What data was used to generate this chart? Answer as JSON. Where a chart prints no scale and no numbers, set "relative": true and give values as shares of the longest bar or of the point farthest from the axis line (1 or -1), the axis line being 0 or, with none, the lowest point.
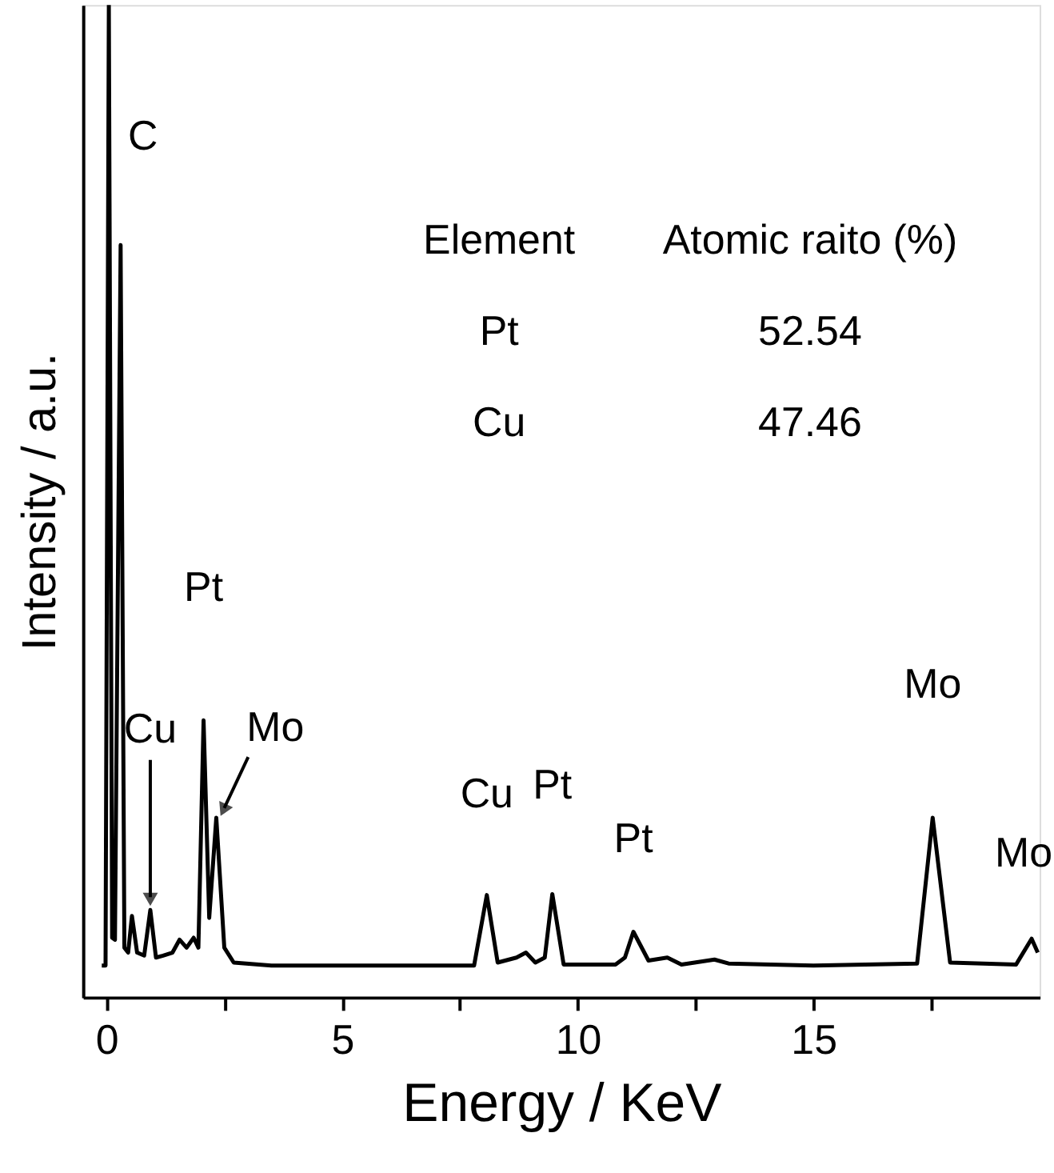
{
  "chart_data": {
    "type": "line",
    "relative": true,
    "xlabel": "Energy / KeV",
    "ylabel": "Intensity / a.u.",
    "xlim": [
      -0.5,
      19.8
    ],
    "xticks": [
      0,
      {
        "value": 2.5,
        "label": null
      },
      5,
      {
        "value": 7.5,
        "label": null
      },
      10,
      {
        "value": 12.5,
        "label": null
      },
      15,
      {
        "value": 17.5,
        "label": null
      }
    ],
    "grid": false,
    "marker": "none",
    "line_style": "solid",
    "series": [
      {
        "color": "#000000",
        "x": [
          -0.1,
          -0.02,
          0.05,
          0.12,
          0.18,
          0.3,
          0.38,
          0.46,
          0.54,
          0.65,
          0.8,
          0.93,
          1.05,
          1.2,
          1.4,
          1.55,
          1.7,
          1.85,
          1.95,
          2.06,
          2.18,
          2.33,
          2.5,
          2.7,
          3.5,
          5.0,
          6.5,
          7.8,
          8.07,
          8.3,
          8.7,
          8.9,
          9.1,
          9.3,
          9.46,
          9.7,
          10.8,
          11.0,
          11.18,
          11.5,
          11.9,
          12.2,
          12.9,
          13.2,
          15.0,
          17.2,
          17.53,
          17.9,
          19.3,
          19.63,
          19.76
        ],
        "values": [
          0.032,
          0.032,
          1.0,
          0.06,
          0.058,
          0.758,
          0.05,
          0.045,
          0.082,
          0.045,
          0.042,
          0.088,
          0.04,
          0.042,
          0.045,
          0.058,
          0.05,
          0.06,
          0.05,
          0.279,
          0.08,
          0.181,
          0.05,
          0.035,
          0.032,
          0.032,
          0.032,
          0.032,
          0.103,
          0.035,
          0.04,
          0.045,
          0.035,
          0.04,
          0.104,
          0.033,
          0.033,
          0.04,
          0.066,
          0.037,
          0.04,
          0.033,
          0.038,
          0.034,
          0.032,
          0.034,
          0.181,
          0.035,
          0.033,
          0.059,
          0.045
        ]
      }
    ],
    "annotations": [
      {
        "text": "C",
        "x": 0.3,
        "y": 0.758
      },
      {
        "text": "Cu",
        "x": 0.93,
        "y": 0.088
      },
      {
        "text": "Pt",
        "x": 2.06,
        "y": 0.279
      },
      {
        "text": "Mo",
        "x": 2.33,
        "y": 0.181
      },
      {
        "text": "Cu",
        "x": 8.07,
        "y": 0.103
      },
      {
        "text": "Pt",
        "x": 9.46,
        "y": 0.104
      },
      {
        "text": "Pt",
        "x": 11.18,
        "y": 0.066
      },
      {
        "text": "Mo",
        "x": 17.53,
        "y": 0.181
      },
      {
        "text": "Mo",
        "x": 19.63,
        "y": 0.059
      },
      "Element",
      "Atomic raito (%)",
      "Pt",
      "52.54",
      "Cu",
      "47.46"
    ]
  }
}
